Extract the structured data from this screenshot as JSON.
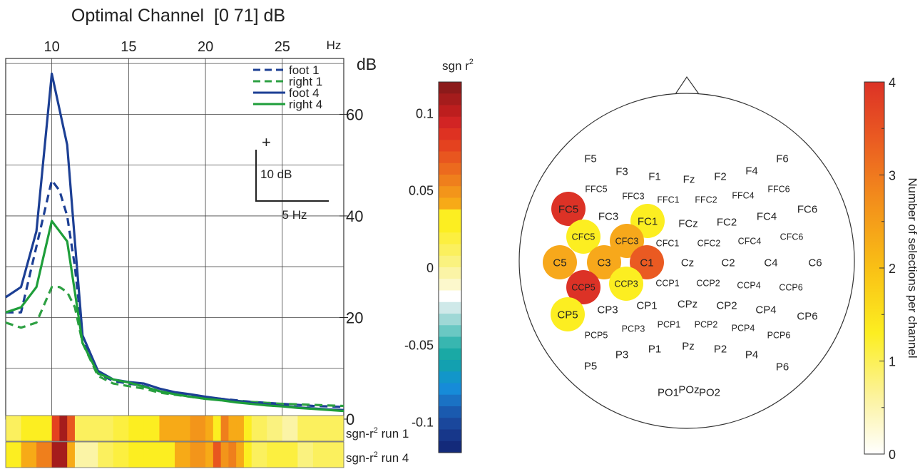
{
  "chart_data": [
    {
      "type": "line",
      "title": "Optimal Channel  [0 71] dB",
      "xunit": "Hz",
      "yunit": "dB",
      "xlim": [
        7,
        29
      ],
      "ylim": [
        0,
        71
      ],
      "xticks": [
        10,
        15,
        20,
        25
      ],
      "yticks": [
        0,
        20,
        40,
        60
      ],
      "ytick_labels": [
        "0",
        "20",
        "40",
        "60"
      ],
      "grid": true,
      "legend_position": "top-right",
      "x": [
        7,
        8,
        9,
        10,
        10.5,
        11,
        11.5,
        12,
        13,
        14,
        15,
        16,
        17,
        18,
        19,
        20,
        21,
        22,
        23,
        24,
        25,
        26,
        27,
        28,
        29
      ],
      "series": [
        {
          "name": "foot 1",
          "style": "dashed",
          "color": "#1c3f94",
          "values": [
            21,
            21,
            34,
            47,
            45,
            40,
            30,
            16,
            9,
            7.5,
            7,
            6.5,
            5.5,
            5,
            4.5,
            4.2,
            4,
            3.7,
            3.4,
            3.2,
            3,
            2.8,
            2.6,
            2.5,
            2.4
          ]
        },
        {
          "name": "right 1",
          "style": "dashed",
          "color": "#2ea043",
          "values": [
            19,
            18,
            19,
            26,
            26,
            25,
            22,
            15,
            8.5,
            7,
            6.5,
            6,
            5.2,
            4.8,
            4.4,
            4,
            3.8,
            3.6,
            3.4,
            3.2,
            3,
            2.9,
            2.8,
            2.7,
            2.6
          ]
        },
        {
          "name": "foot 4",
          "style": "solid",
          "color": "#1c3f94",
          "values": [
            24,
            26,
            37,
            68,
            61,
            54,
            35,
            16.5,
            9.5,
            7.8,
            7.3,
            7,
            6,
            5.3,
            4.9,
            4.4,
            4,
            3.6,
            3.2,
            2.9,
            2.6,
            2.3,
            2.1,
            1.9,
            1.8
          ]
        },
        {
          "name": "right 4",
          "style": "solid",
          "color": "#1e9e3a",
          "values": [
            21,
            22,
            26,
            39,
            37,
            35,
            25,
            15,
            9,
            7.8,
            7.2,
            6.4,
            5.5,
            4.9,
            4.4,
            4,
            3.7,
            3.3,
            3,
            2.7,
            2.5,
            2.2,
            2,
            1.8,
            1.6
          ]
        }
      ],
      "scale_bar": {
        "plus": "+",
        "y_label": "10 dB",
        "x_label": "5 Hz",
        "y_value": 10,
        "x_value": 5
      },
      "rsq_strips": {
        "labels": [
          "sgn-r",
          "sgn-r"
        ],
        "sup": "2",
        "run_labels": [
          " run 1",
          " run 4"
        ],
        "bin_edges": [
          7,
          8,
          9,
          10,
          10.5,
          11,
          11.5,
          12,
          13,
          14,
          15,
          16,
          17,
          18,
          19,
          20,
          20.5,
          21,
          21.5,
          22,
          22.5,
          23,
          24,
          25,
          26,
          27,
          29
        ],
        "run1": [
          0.01,
          0.025,
          0.035,
          0.085,
          0.11,
          0.075,
          0.012,
          0.01,
          0.015,
          0.02,
          0.03,
          0.035,
          0.04,
          0.045,
          0.05,
          0.045,
          0.035,
          0.055,
          0.04,
          0.04,
          0.025,
          0.012,
          0.002,
          0,
          0.015,
          0.015
        ],
        "run4": [
          0.03,
          0.04,
          0.06,
          0.11,
          0.11,
          0.04,
          0,
          0,
          0.015,
          0.02,
          0.025,
          0.03,
          0.035,
          0.045,
          0.05,
          0.045,
          0.07,
          0.05,
          0.06,
          0.04,
          0.025,
          0.015,
          0.02,
          0.02,
          0.005,
          0.015
        ]
      }
    },
    {
      "type": "heatmap",
      "title": "sgn r",
      "title_sup": "2",
      "role": "colorbar",
      "range": [
        -0.12,
        0.12
      ],
      "ticks": [
        -0.1,
        -0.05,
        0,
        0.05,
        0.1
      ],
      "tick_labels": [
        "-0.1",
        "-0.05",
        "0",
        "0.05",
        "0.1"
      ],
      "levels_top_to_bottom": [
        "#8c1a1a",
        "#a51c1c",
        "#bd1e1e",
        "#d22424",
        "#de3222",
        "#e4421f",
        "#e8561f",
        "#ec6a1e",
        "#ef7f1c",
        "#f3951a",
        "#f7aa17",
        "#fcee21",
        "#fcee21",
        "#fcef40",
        "#fbf05e",
        "#faf27f",
        "#fbf4a6",
        "#fcf8cc",
        "#ffffff",
        "#cfe9e9",
        "#9fd8d6",
        "#6ac8c3",
        "#38b6b0",
        "#1aa9a5",
        "#13a0b0",
        "#1296c9",
        "#168bd8",
        "#1a72c4",
        "#1a5aaf",
        "#1a479c",
        "#17378a",
        "#132a7a"
      ]
    },
    {
      "type": "heatmap",
      "role": "topography",
      "electrodes": [
        {
          "label": "F5",
          "count": 0
        },
        {
          "label": "F3",
          "count": 0
        },
        {
          "label": "F1",
          "count": 0
        },
        {
          "label": "Fz",
          "count": 0
        },
        {
          "label": "F2",
          "count": 0
        },
        {
          "label": "F4",
          "count": 0
        },
        {
          "label": "F6",
          "count": 0
        },
        {
          "label": "FFC5",
          "count": 0
        },
        {
          "label": "FFC3",
          "count": 0
        },
        {
          "label": "FFC1",
          "count": 0
        },
        {
          "label": "FFC2",
          "count": 0
        },
        {
          "label": "FFC4",
          "count": 0
        },
        {
          "label": "FFC6",
          "count": 0
        },
        {
          "label": "FC5",
          "count": 4
        },
        {
          "label": "FC3",
          "count": 0
        },
        {
          "label": "FC1",
          "count": 1
        },
        {
          "label": "FCz",
          "count": 0
        },
        {
          "label": "FC2",
          "count": 0
        },
        {
          "label": "FC4",
          "count": 0
        },
        {
          "label": "FC6",
          "count": 0
        },
        {
          "label": "CFC5",
          "count": 1
        },
        {
          "label": "CFC3",
          "count": 2
        },
        {
          "label": "CFC1",
          "count": 0
        },
        {
          "label": "CFC2",
          "count": 0
        },
        {
          "label": "CFC4",
          "count": 0
        },
        {
          "label": "CFC6",
          "count": 0
        },
        {
          "label": "C5",
          "count": 2
        },
        {
          "label": "C3",
          "count": 2
        },
        {
          "label": "C1",
          "count": 3
        },
        {
          "label": "Cz",
          "count": 0
        },
        {
          "label": "C2",
          "count": 0
        },
        {
          "label": "C4",
          "count": 0
        },
        {
          "label": "C6",
          "count": 0
        },
        {
          "label": "CCP5",
          "count": 4
        },
        {
          "label": "CCP3",
          "count": 1
        },
        {
          "label": "CCP1",
          "count": 0
        },
        {
          "label": "CCP2",
          "count": 0
        },
        {
          "label": "CCP4",
          "count": 0
        },
        {
          "label": "CCP6",
          "count": 0
        },
        {
          "label": "CP5",
          "count": 1
        },
        {
          "label": "CP3",
          "count": 0
        },
        {
          "label": "CP1",
          "count": 0
        },
        {
          "label": "CPz",
          "count": 0
        },
        {
          "label": "CP2",
          "count": 0
        },
        {
          "label": "CP4",
          "count": 0
        },
        {
          "label": "CP6",
          "count": 0
        },
        {
          "label": "PCP5",
          "count": 0
        },
        {
          "label": "PCP3",
          "count": 0
        },
        {
          "label": "PCP1",
          "count": 0
        },
        {
          "label": "PCP2",
          "count": 0
        },
        {
          "label": "PCP4",
          "count": 0
        },
        {
          "label": "PCP6",
          "count": 0
        },
        {
          "label": "P5",
          "count": 0
        },
        {
          "label": "P3",
          "count": 0
        },
        {
          "label": "P1",
          "count": 0
        },
        {
          "label": "Pz",
          "count": 0
        },
        {
          "label": "P2",
          "count": 0
        },
        {
          "label": "P4",
          "count": 0
        },
        {
          "label": "P6",
          "count": 0
        },
        {
          "label": "PO1",
          "count": 0
        },
        {
          "label": "POz",
          "count": 0
        },
        {
          "label": "PO2",
          "count": 0
        }
      ],
      "count_colors": [
        "#ffffff",
        "#fcee21",
        "#f7a81b",
        "#ea5a22",
        "#dc3226"
      ]
    },
    {
      "type": "heatmap",
      "role": "colorbar",
      "label": "Number of selections per channel",
      "range": [
        0,
        4
      ],
      "ticks": [
        0,
        1,
        2,
        3,
        4
      ],
      "tick_labels": [
        "0",
        "1",
        "2",
        "3",
        "4"
      ],
      "stops": [
        {
          "value": 0,
          "color": "#ffffff"
        },
        {
          "value": 0.6,
          "color": "#fcf3a0"
        },
        {
          "value": 1.3,
          "color": "#fcee21"
        },
        {
          "value": 2,
          "color": "#f9c015"
        },
        {
          "value": 2.7,
          "color": "#f3901b"
        },
        {
          "value": 3.4,
          "color": "#ea5a22"
        },
        {
          "value": 4,
          "color": "#dc3226"
        }
      ]
    }
  ]
}
